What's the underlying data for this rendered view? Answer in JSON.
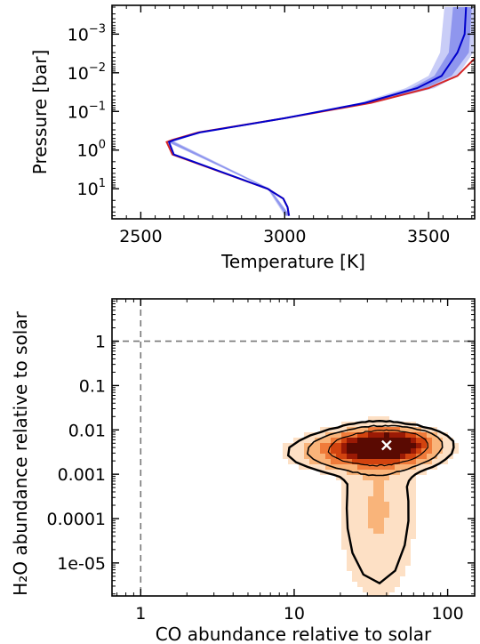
{
  "chart_data": [
    {
      "type": "line",
      "xlabel": "Temperature [K]",
      "ylabel": "Pressure [bar]",
      "xlim": [
        2400,
        3660
      ],
      "ylim": [
        60,
        0.00018
      ],
      "yscale": "log",
      "y_inverted": true,
      "xticks": [
        2500,
        3000,
        3500
      ],
      "yticks": [
        {
          "value": 0.001,
          "base": "10",
          "exp": "−3"
        },
        {
          "value": 0.01,
          "base": "10",
          "exp": "−2"
        },
        {
          "value": 0.1,
          "base": "10",
          "exp": "−1"
        },
        {
          "value": 1,
          "base": "10",
          "exp": "0"
        },
        {
          "value": 10,
          "base": "10",
          "exp": "1"
        }
      ],
      "series": [
        {
          "color": "#d62728",
          "x": [
            3015,
            3010,
            2995,
            2940,
            2610,
            2590,
            2608,
            2700,
            3000,
            3300,
            3500,
            3600,
            3680
          ],
          "y": [
            50,
            30,
            18,
            10,
            1.3,
            0.62,
            0.55,
            0.35,
            0.15,
            0.06,
            0.025,
            0.012,
            0.003
          ]
        },
        {
          "color": "#0000cc",
          "x": [
            3015,
            3010,
            2995,
            2940,
            2615,
            2598,
            2615,
            2705,
            3000,
            3280,
            3460,
            3545,
            3600,
            3625,
            3630
          ],
          "y": [
            50,
            30,
            18,
            10,
            1.3,
            0.62,
            0.55,
            0.35,
            0.15,
            0.06,
            0.025,
            0.012,
            0.003,
            0.001,
            0.0002
          ]
        }
      ],
      "bands": [
        {
          "color": "#c9cdf7",
          "x_low": [
            3000,
            2940,
            2588,
            2700,
            3000,
            3260,
            3420,
            3500,
            3540,
            3555
          ],
          "x_high": [
            3020,
            2950,
            2618,
            2712,
            3000,
            3310,
            3520,
            3600,
            3655,
            3660
          ],
          "y": [
            50,
            10,
            0.6,
            0.35,
            0.15,
            0.06,
            0.025,
            0.012,
            0.003,
            0.0002
          ]
        },
        {
          "color": "#8f96ee",
          "x_low": [
            3005,
            2942,
            2592,
            2703,
            3000,
            3270,
            3440,
            3520,
            3570,
            3585
          ],
          "x_high": [
            3018,
            2948,
            2612,
            2709,
            3000,
            3295,
            3490,
            3580,
            3640,
            3650
          ],
          "y": [
            50,
            10,
            0.6,
            0.35,
            0.15,
            0.06,
            0.025,
            0.012,
            0.003,
            0.0002
          ]
        }
      ]
    },
    {
      "type": "heatmap",
      "xlabel": "CO abundance relative to solar",
      "ylabel": "H₂O abundance relative to solar",
      "xscale": "log",
      "yscale": "log",
      "xlim": [
        0.65,
        150
      ],
      "ylim": [
        1.8e-06,
        9
      ],
      "xticks": [
        {
          "value": 1,
          "label": "1"
        },
        {
          "value": 10,
          "label": "10"
        },
        {
          "value": 100,
          "label": "100"
        }
      ],
      "yticks": [
        {
          "value": 1,
          "label": "1"
        },
        {
          "value": 0.1,
          "label": "0.1"
        },
        {
          "value": 0.01,
          "label": "0.01"
        },
        {
          "value": 0.001,
          "label": "0.001"
        },
        {
          "value": 0.0001,
          "label": "0.0001"
        },
        {
          "value": 1e-05,
          "label": "1e-05"
        }
      ],
      "reference_lines": {
        "x": 1,
        "y": 1
      },
      "best_fit": {
        "x": 40,
        "y": 0.0045
      },
      "colors": [
        "#fde0c5",
        "#f9b47a",
        "#f07b3a",
        "#d2430f",
        "#9a1a05",
        "#5a0a02"
      ],
      "density": [
        {
          "x": 38,
          "y": 0.0042,
          "sx": 0.16,
          "sy": 0.18,
          "peak": 1.0
        },
        {
          "x": 32,
          "y": 0.0035,
          "sx": 0.2,
          "sy": 0.22,
          "peak": 0.55
        },
        {
          "x": 45,
          "y": 0.006,
          "sx": 0.15,
          "sy": 0.14,
          "peak": 0.45
        },
        {
          "x": 35,
          "y": 0.00015,
          "sx": 0.16,
          "sy": 1.3,
          "peak": 0.13
        },
        {
          "x": 28,
          "y": 0.003,
          "sx": 0.28,
          "sy": 0.25,
          "peak": 0.2
        }
      ]
    }
  ]
}
